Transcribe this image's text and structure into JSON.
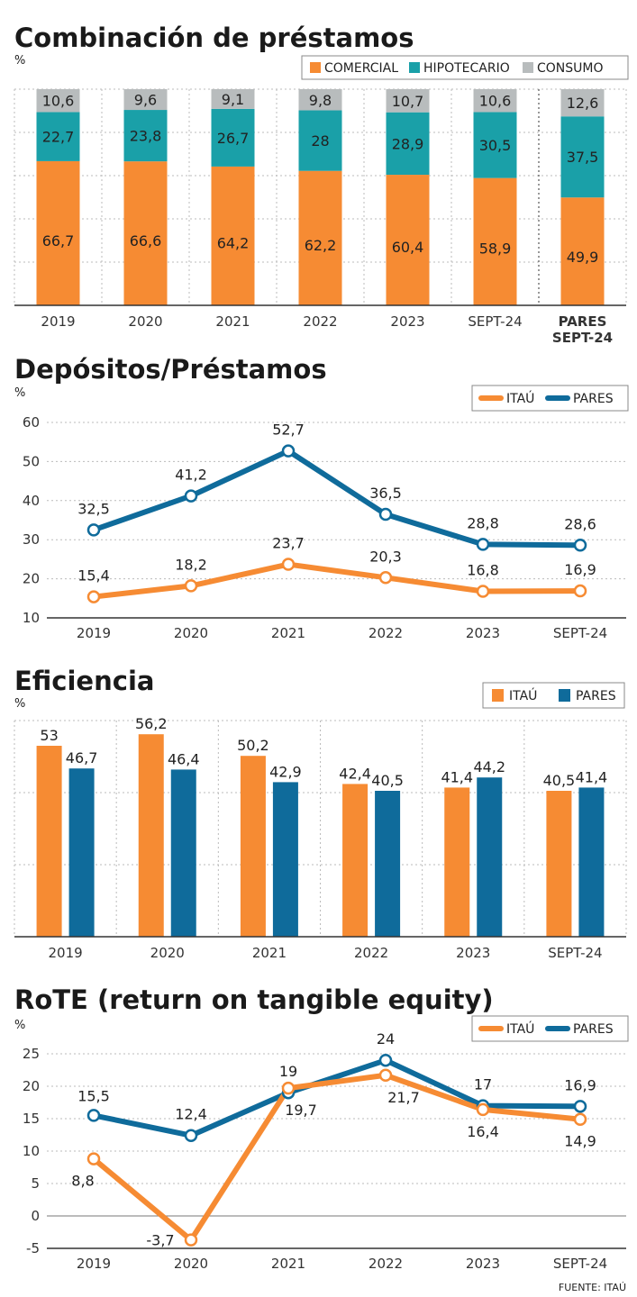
{
  "colors": {
    "comercial": "#f68b33",
    "hipotecario": "#1aa0a8",
    "consumo": "#b8bcbd",
    "itau": "#f68b33",
    "pares": "#0f6b9b",
    "grid": "#bbbbbb",
    "axis": "#333333"
  },
  "source": "FUENTE: ITAÚ",
  "chart_data": [
    {
      "type": "bar",
      "stacked": true,
      "title": "Combinación de préstamos",
      "unit": "%",
      "categories": [
        "2019",
        "2020",
        "2021",
        "2022",
        "2023",
        "SEPT-24",
        "PARES SEPT-24"
      ],
      "category_lines": [
        [
          "2019"
        ],
        [
          "2020"
        ],
        [
          "2021"
        ],
        [
          "2022"
        ],
        [
          "2023"
        ],
        [
          "SEPT-24"
        ],
        [
          "PARES",
          "SEPT-24"
        ]
      ],
      "series": [
        {
          "name": "COMERCIAL",
          "values": [
            66.7,
            66.6,
            64.2,
            62.2,
            60.4,
            58.9,
            49.9
          ],
          "labels": [
            "66,7",
            "66,6",
            "64,2",
            "62,2",
            "60,4",
            "58,9",
            "49,9"
          ]
        },
        {
          "name": "HIPOTECARIO",
          "values": [
            22.7,
            23.8,
            26.7,
            28,
            28.9,
            30.5,
            37.5
          ],
          "labels": [
            "22,7",
            "23,8",
            "26,7",
            "28",
            "28,9",
            "30,5",
            "37,5"
          ]
        },
        {
          "name": "CONSUMO",
          "values": [
            10.6,
            9.6,
            9.1,
            9.8,
            10.7,
            10.6,
            12.6
          ],
          "labels": [
            "10,6",
            "9,6",
            "9,1",
            "9,8",
            "10,7",
            "10,6",
            "12,6"
          ]
        }
      ],
      "ylim": [
        0,
        100
      ],
      "grid": true,
      "legend": "top-right"
    },
    {
      "type": "line",
      "title": "Depósitos/Préstamos",
      "unit": "%",
      "categories": [
        "2019",
        "2020",
        "2021",
        "2022",
        "2023",
        "SEPT-24"
      ],
      "series": [
        {
          "name": "ITAÚ",
          "values": [
            15.4,
            18.2,
            23.7,
            20.3,
            16.8,
            16.9
          ],
          "labels": [
            "15,4",
            "18,2",
            "23,7",
            "20,3",
            "16,8",
            "16,9"
          ]
        },
        {
          "name": "PARES",
          "values": [
            32.5,
            41.2,
            52.7,
            36.5,
            28.8,
            28.6
          ],
          "labels": [
            "32,5",
            "41,2",
            "52,7",
            "36,5",
            "28,8",
            "28,6"
          ]
        }
      ],
      "ylim": [
        10,
        60
      ],
      "yticks": [
        "10",
        "20",
        "30",
        "40",
        "50",
        "60"
      ],
      "grid": true,
      "legend": "top-right"
    },
    {
      "type": "bar",
      "title": "Eficiencia",
      "unit": "%",
      "categories": [
        "2019",
        "2020",
        "2021",
        "2022",
        "2023",
        "SEPT-24"
      ],
      "series": [
        {
          "name": "ITAÚ",
          "values": [
            53,
            56.2,
            50.2,
            42.4,
            41.4,
            40.5
          ],
          "labels": [
            "53",
            "56,2",
            "50,2",
            "42,4",
            "41,4",
            "40,5"
          ]
        },
        {
          "name": "PARES",
          "values": [
            46.7,
            46.4,
            42.9,
            40.5,
            44.2,
            41.4
          ],
          "labels": [
            "46,7",
            "46,4",
            "42,9",
            "40,5",
            "44,2",
            "41,4"
          ]
        }
      ],
      "ylim": [
        0,
        60
      ],
      "grid": true,
      "legend": "top-right"
    },
    {
      "type": "line",
      "title": "RoTE (return on tangible equity)",
      "unit": "%",
      "categories": [
        "2019",
        "2020",
        "2021",
        "2022",
        "2023",
        "SEPT-24"
      ],
      "series": [
        {
          "name": "ITAÚ",
          "values": [
            8.8,
            -3.7,
            19.7,
            21.7,
            16.4,
            14.9
          ],
          "labels": [
            "8,8",
            "-3,7",
            "19,7",
            "21,7",
            "16,4",
            "14,9"
          ]
        },
        {
          "name": "PARES",
          "values": [
            15.5,
            12.4,
            19,
            24,
            17,
            16.9
          ],
          "labels": [
            "15,5",
            "12,4",
            "19",
            "24",
            "17",
            "16,9"
          ]
        }
      ],
      "ylim": [
        -5,
        25
      ],
      "yticks": [
        "-5",
        "0",
        "5",
        "10",
        "15",
        "20",
        "25"
      ],
      "grid": true,
      "legend": "top-right"
    }
  ]
}
